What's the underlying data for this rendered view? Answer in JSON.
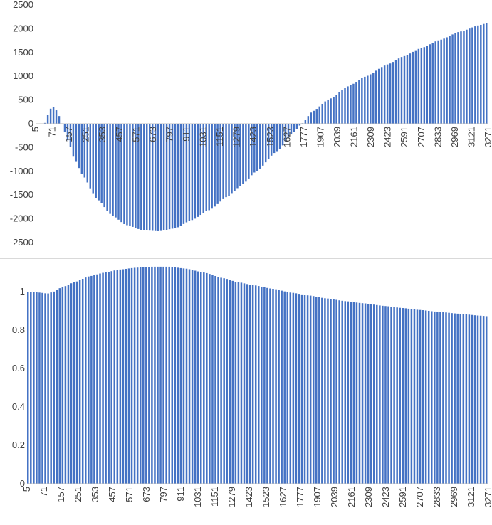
{
  "chart_data": [
    {
      "type": "bar",
      "title": "",
      "xlabel": "",
      "ylabel": "",
      "ylim": [
        -2500,
        2500
      ],
      "yticks": [
        2500,
        2000,
        1500,
        1000,
        500,
        0,
        -500,
        -1000,
        -1500,
        -2000,
        -2500
      ],
      "xtick_labels": [
        "5",
        "71",
        "157",
        "251",
        "353",
        "457",
        "571",
        "673",
        "797",
        "911",
        "1031",
        "1151",
        "1279",
        "1423",
        "1523",
        "1627",
        "1777",
        "1907",
        "2039",
        "2161",
        "2309",
        "2423",
        "2591",
        "2707",
        "2833",
        "2969",
        "3121",
        "3271"
      ],
      "color": "#4472C4",
      "grid": false,
      "legend": "none",
      "x_range": [
        5,
        3325
      ],
      "curve_keypoints": [
        {
          "x": 5,
          "y": 0
        },
        {
          "x": 40,
          "y": 0
        },
        {
          "x": 71,
          "y": -20
        },
        {
          "x": 85,
          "y": 60
        },
        {
          "x": 105,
          "y": 250
        },
        {
          "x": 125,
          "y": 340
        },
        {
          "x": 140,
          "y": 355
        },
        {
          "x": 155,
          "y": 310
        },
        {
          "x": 175,
          "y": 200
        },
        {
          "x": 200,
          "y": 20
        },
        {
          "x": 220,
          "y": -150
        },
        {
          "x": 254,
          "y": -420
        },
        {
          "x": 300,
          "y": -780
        },
        {
          "x": 353,
          "y": -1080
        },
        {
          "x": 457,
          "y": -1580
        },
        {
          "x": 571,
          "y": -1930
        },
        {
          "x": 673,
          "y": -2130
        },
        {
          "x": 797,
          "y": -2240
        },
        {
          "x": 911,
          "y": -2260
        },
        {
          "x": 1031,
          "y": -2200
        },
        {
          "x": 1151,
          "y": -2030
        },
        {
          "x": 1279,
          "y": -1820
        },
        {
          "x": 1423,
          "y": -1520
        },
        {
          "x": 1523,
          "y": -1280
        },
        {
          "x": 1627,
          "y": -1000
        },
        {
          "x": 1777,
          "y": -580
        },
        {
          "x": 1907,
          "y": -160
        },
        {
          "x": 1960,
          "y": 0
        },
        {
          "x": 2039,
          "y": 260
        },
        {
          "x": 2161,
          "y": 520
        },
        {
          "x": 2309,
          "y": 800
        },
        {
          "x": 2423,
          "y": 990
        },
        {
          "x": 2591,
          "y": 1250
        },
        {
          "x": 2707,
          "y": 1420
        },
        {
          "x": 2833,
          "y": 1590
        },
        {
          "x": 2969,
          "y": 1760
        },
        {
          "x": 3121,
          "y": 1940
        },
        {
          "x": 3271,
          "y": 2080
        },
        {
          "x": 3325,
          "y": 2130
        }
      ]
    },
    {
      "type": "bar",
      "title": "",
      "xlabel": "",
      "ylabel": "",
      "ylim": [
        0,
        1.2
      ],
      "yticks": [
        0,
        0.2,
        0.4,
        0.6,
        0.8,
        1
      ],
      "ytick_labels": [
        "0",
        "0.2",
        "0.4",
        "0.6",
        "0.8",
        "1"
      ],
      "xtick_labels": [
        "5",
        "71",
        "157",
        "251",
        "353",
        "457",
        "571",
        "673",
        "797",
        "911",
        "1031",
        "1151",
        "1279",
        "1423",
        "1523",
        "1627",
        "1777",
        "1907",
        "2039",
        "2161",
        "2309",
        "2423",
        "2591",
        "2707",
        "2833",
        "2969",
        "3121",
        "3271"
      ],
      "color": "#4472C4",
      "grid": false,
      "legend": "none",
      "x_range": [
        5,
        3325
      ],
      "curve_keypoints": [
        {
          "x": 5,
          "y": 1.0
        },
        {
          "x": 71,
          "y": 1.0
        },
        {
          "x": 100,
          "y": 0.995
        },
        {
          "x": 157,
          "y": 0.99
        },
        {
          "x": 200,
          "y": 1.0
        },
        {
          "x": 251,
          "y": 1.02
        },
        {
          "x": 353,
          "y": 1.05
        },
        {
          "x": 457,
          "y": 1.08
        },
        {
          "x": 571,
          "y": 1.1
        },
        {
          "x": 673,
          "y": 1.115
        },
        {
          "x": 797,
          "y": 1.125
        },
        {
          "x": 911,
          "y": 1.13
        },
        {
          "x": 1031,
          "y": 1.13
        },
        {
          "x": 1151,
          "y": 1.12
        },
        {
          "x": 1279,
          "y": 1.1
        },
        {
          "x": 1423,
          "y": 1.07
        },
        {
          "x": 1523,
          "y": 1.05
        },
        {
          "x": 1627,
          "y": 1.035
        },
        {
          "x": 1777,
          "y": 1.015
        },
        {
          "x": 1907,
          "y": 0.995
        },
        {
          "x": 2039,
          "y": 0.98
        },
        {
          "x": 2161,
          "y": 0.965
        },
        {
          "x": 2309,
          "y": 0.95
        },
        {
          "x": 2423,
          "y": 0.94
        },
        {
          "x": 2591,
          "y": 0.925
        },
        {
          "x": 2707,
          "y": 0.915
        },
        {
          "x": 2833,
          "y": 0.905
        },
        {
          "x": 2969,
          "y": 0.895
        },
        {
          "x": 3121,
          "y": 0.885
        },
        {
          "x": 3271,
          "y": 0.875
        },
        {
          "x": 3325,
          "y": 0.872
        }
      ]
    }
  ]
}
